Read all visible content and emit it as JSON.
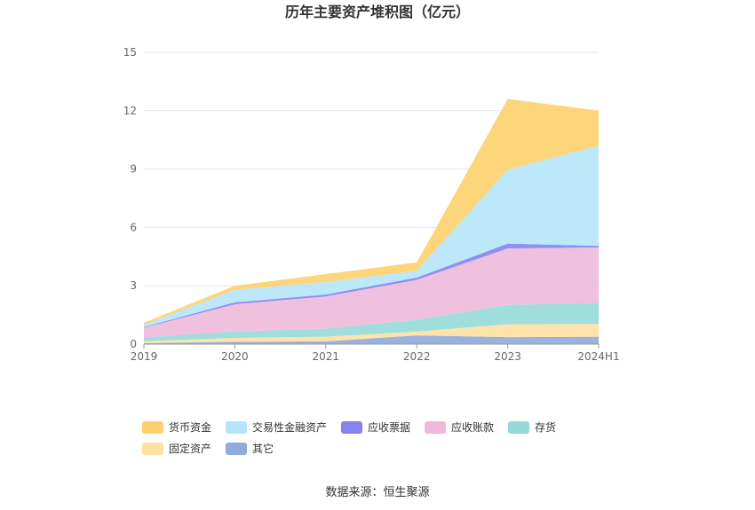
{
  "chart_data": {
    "type": "area",
    "stacked": true,
    "title": "历年主要资产堆积图（亿元）",
    "x": [
      "2019",
      "2020",
      "2021",
      "2022",
      "2023",
      "2024H1"
    ],
    "ylim": [
      0,
      15
    ],
    "yticks": [
      0,
      3,
      6,
      9,
      12,
      15
    ],
    "grid": true,
    "legend_position": "bottom",
    "series": [
      {
        "name": "其它",
        "color": "#8faadc",
        "values": [
          0.05,
          0.12,
          0.14,
          0.45,
          0.36,
          0.38
        ]
      },
      {
        "name": "固定资产",
        "color": "#ffe0a0",
        "values": [
          0.1,
          0.2,
          0.24,
          0.2,
          0.66,
          0.66
        ]
      },
      {
        "name": "存货",
        "color": "#96d9d9",
        "values": [
          0.2,
          0.33,
          0.42,
          0.6,
          1.0,
          1.08
        ]
      },
      {
        "name": "应收账款",
        "color": "#eebadb",
        "values": [
          0.5,
          1.4,
          1.65,
          2.05,
          2.9,
          2.85
        ]
      },
      {
        "name": "应收票据",
        "color": "#8484f0",
        "values": [
          0.03,
          0.1,
          0.1,
          0.12,
          0.25,
          0.08
        ]
      },
      {
        "name": "交易性金融资产",
        "color": "#b5e5fa",
        "values": [
          0.12,
          0.65,
          0.65,
          0.35,
          3.8,
          5.15
        ]
      },
      {
        "name": "货币资金",
        "color": "#fdd06b",
        "values": [
          0.1,
          0.2,
          0.4,
          0.43,
          3.63,
          1.8
        ]
      }
    ],
    "legend_order": [
      "货币资金",
      "交易性金融资产",
      "应收票据",
      "应收账款",
      "存货",
      "固定资产",
      "其它"
    ]
  },
  "footer": {
    "source": "数据来源：恒生聚源"
  }
}
